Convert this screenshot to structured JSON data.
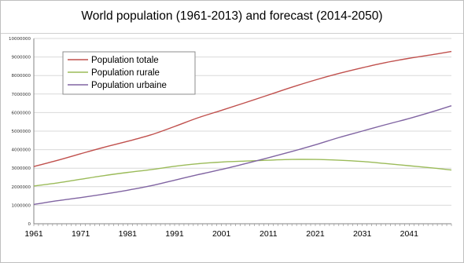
{
  "chart_data": {
    "type": "line",
    "title": "World population (1961-2013) and forecast (2014-2050)",
    "xlabel": "",
    "ylabel": "",
    "xlim": [
      1961,
      2050
    ],
    "ylim": [
      0,
      10000000
    ],
    "ytick_values": [
      0,
      1000000,
      2000000,
      3000000,
      4000000,
      5000000,
      6000000,
      7000000,
      8000000,
      9000000,
      10000000
    ],
    "ytick_labels": [
      "0",
      "1000000",
      "2000000",
      "3000000",
      "4000000",
      "5000000",
      "6000000",
      "7000000",
      "8000000",
      "9000000",
      "10000000"
    ],
    "xtick_values": [
      1961,
      1971,
      1981,
      1991,
      2001,
      2011,
      2021,
      2031,
      2041
    ],
    "xtick_labels": [
      "1961",
      "1971",
      "1981",
      "1991",
      "2001",
      "2011",
      "2021",
      "2031",
      "2041"
    ],
    "grid": "horizontal",
    "legend_position": "top-left",
    "x": [
      1961,
      1966,
      1971,
      1976,
      1981,
      1986,
      1991,
      1996,
      2001,
      2006,
      2011,
      2016,
      2021,
      2026,
      2031,
      2036,
      2041,
      2046,
      2050
    ],
    "series": [
      {
        "name": "Population totale",
        "color": "#c0504d",
        "values": [
          3090000,
          3420000,
          3780000,
          4130000,
          4450000,
          4800000,
          5250000,
          5720000,
          6120000,
          6530000,
          6950000,
          7370000,
          7760000,
          8110000,
          8420000,
          8700000,
          8930000,
          9130000,
          9300000
        ]
      },
      {
        "name": "Population rurale",
        "color": "#9bbb59",
        "values": [
          2040000,
          2200000,
          2400000,
          2600000,
          2770000,
          2920000,
          3100000,
          3240000,
          3330000,
          3380000,
          3430000,
          3470000,
          3470000,
          3430000,
          3360000,
          3250000,
          3130000,
          3010000,
          2900000
        ]
      },
      {
        "name": "Population urbaine",
        "color": "#8064a2",
        "values": [
          1040000,
          1240000,
          1410000,
          1600000,
          1810000,
          2050000,
          2350000,
          2650000,
          2930000,
          3240000,
          3560000,
          3900000,
          4260000,
          4650000,
          5000000,
          5350000,
          5680000,
          6050000,
          6370000
        ]
      }
    ]
  }
}
